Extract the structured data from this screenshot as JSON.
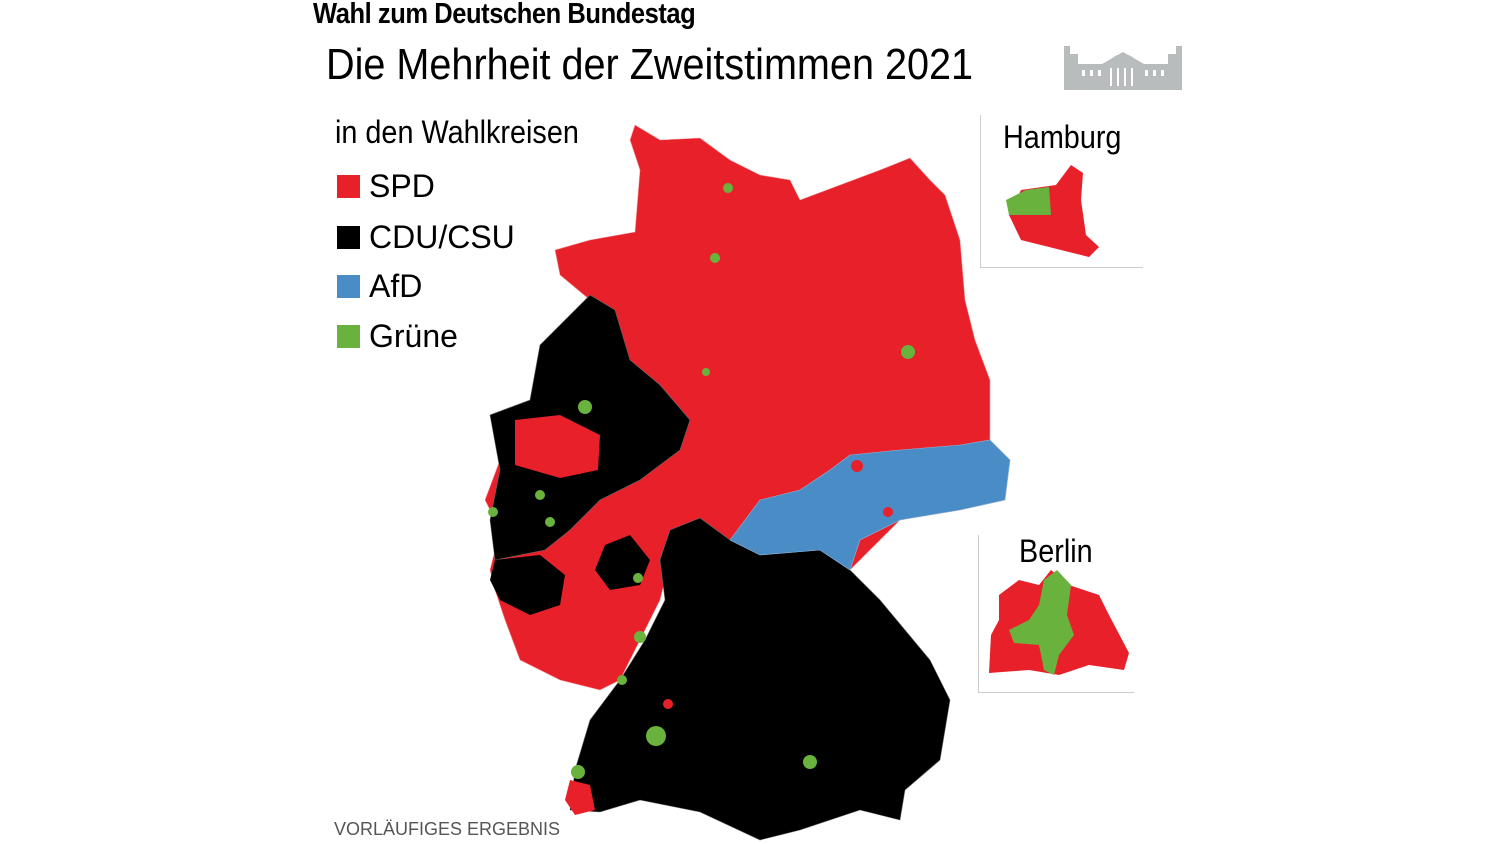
{
  "header": {
    "kicker": "Wahl zum Deutschen Bundestag",
    "title": "Die Mehrheit der Zweitstimmen 2021",
    "icon": "reichstag-building-icon"
  },
  "legend": {
    "title": "in den Wahlkreisen",
    "items": [
      {
        "label": "SPD",
        "color": "#e8202a"
      },
      {
        "label": "CDU/CSU",
        "color": "#000000"
      },
      {
        "label": "AfD",
        "color": "#4a8cc6"
      },
      {
        "label": "Grüne",
        "color": "#6ab23e"
      }
    ]
  },
  "insets": {
    "hamburg": "Hamburg",
    "berlin": "Berlin"
  },
  "footer": "VORLÄUFIGES ERGEBNIS"
}
